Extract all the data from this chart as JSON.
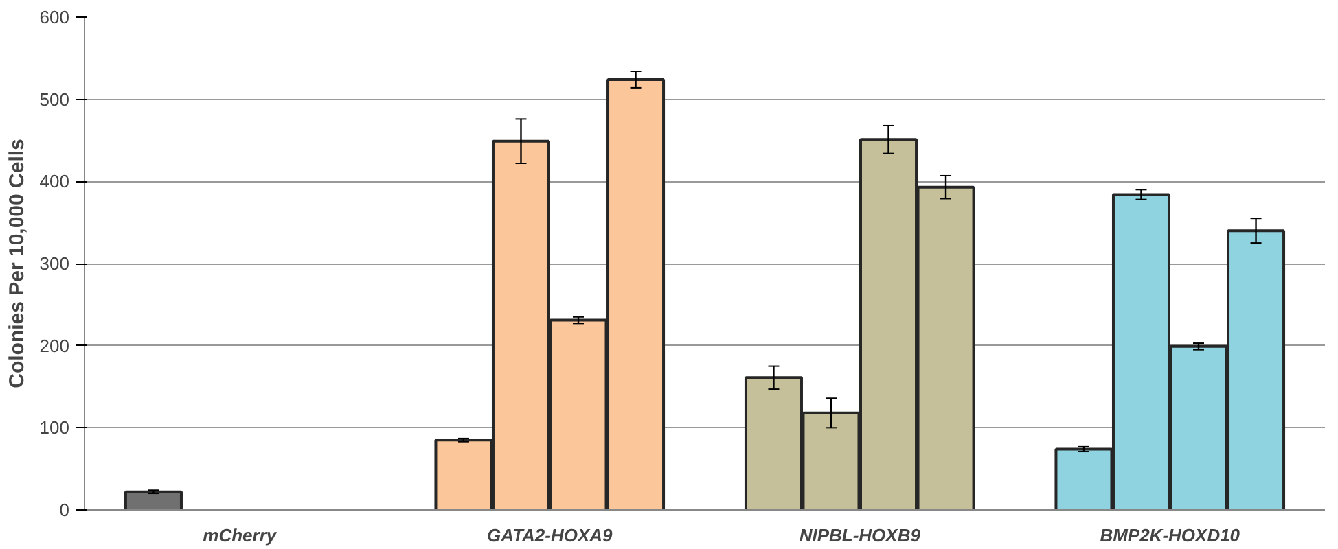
{
  "chart_data": {
    "type": "bar",
    "ylabel": "Colonies Per 10,000 Cells",
    "categories": [
      "mCherry",
      "GATA2-HOXA9",
      "NIPBL-HOXB9",
      "BMP2K-HOXD10"
    ],
    "series": [
      {
        "colors": [
          "#707070",
          "#fbc79a",
          "#c6c09a",
          "#8fd3e0"
        ],
        "values": [
          22,
          85,
          161,
          74
        ],
        "errors": [
          2,
          2,
          14,
          3
        ]
      },
      {
        "colors": [
          "#707070",
          "#fbc79a",
          "#c6c09a",
          "#8fd3e0"
        ],
        "values": [
          null,
          449,
          118,
          384
        ],
        "errors": [
          null,
          27,
          18,
          6
        ]
      },
      {
        "colors": [
          "#707070",
          "#fbc79a",
          "#c6c09a",
          "#8fd3e0"
        ],
        "values": [
          null,
          231,
          451,
          199
        ],
        "errors": [
          null,
          4,
          17,
          4
        ]
      },
      {
        "colors": [
          "#707070",
          "#fbc79a",
          "#c6c09a",
          "#8fd3e0"
        ],
        "values": [
          null,
          524,
          393,
          340
        ],
        "errors": [
          null,
          10,
          14,
          15
        ]
      }
    ],
    "ylim": [
      0,
      600
    ],
    "yticks": [
      0,
      100,
      200,
      300,
      400,
      500,
      600
    ],
    "grid": "y"
  }
}
